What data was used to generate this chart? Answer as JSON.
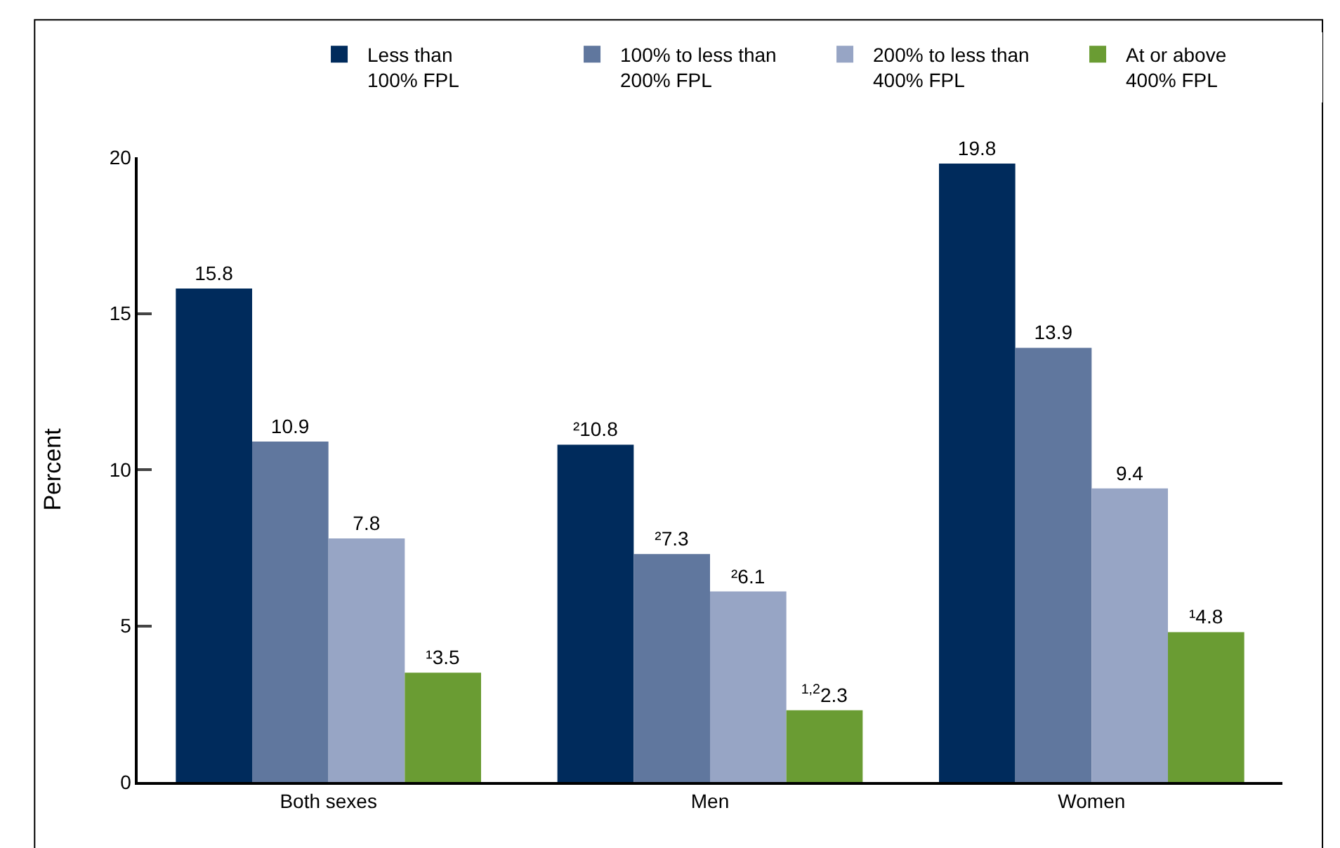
{
  "chart_data": {
    "type": "bar",
    "ylabel": "Percent",
    "categories": [
      "Both sexes",
      "Men",
      "Women"
    ],
    "series": [
      {
        "name": "Less than\n100% FPL",
        "color": "#002b5c",
        "values": [
          15.8,
          10.8,
          19.8
        ],
        "value_labels": [
          "15.8",
          "²10.8",
          "19.8"
        ]
      },
      {
        "name": "100% to less than\n200% FPL",
        "color": "#60779e",
        "values": [
          10.9,
          7.3,
          13.9
        ],
        "value_labels": [
          "10.9",
          "²7.3",
          "13.9"
        ]
      },
      {
        "name": "200% to less than\n400% FPL",
        "color": "#97a5c5",
        "values": [
          7.8,
          6.1,
          9.4
        ],
        "value_labels": [
          "7.8",
          "²6.1",
          "9.4"
        ]
      },
      {
        "name": "At or above\n400% FPL",
        "color": "#6a9c33",
        "values": [
          3.5,
          2.3,
          4.8
        ],
        "value_labels": [
          "¹3.5",
          "$^{1,2}$2.3",
          "¹4.8"
        ]
      }
    ],
    "ylim": [
      0,
      20
    ],
    "yticks": [
      0,
      5,
      10,
      15,
      20
    ],
    "legend": "top right"
  }
}
